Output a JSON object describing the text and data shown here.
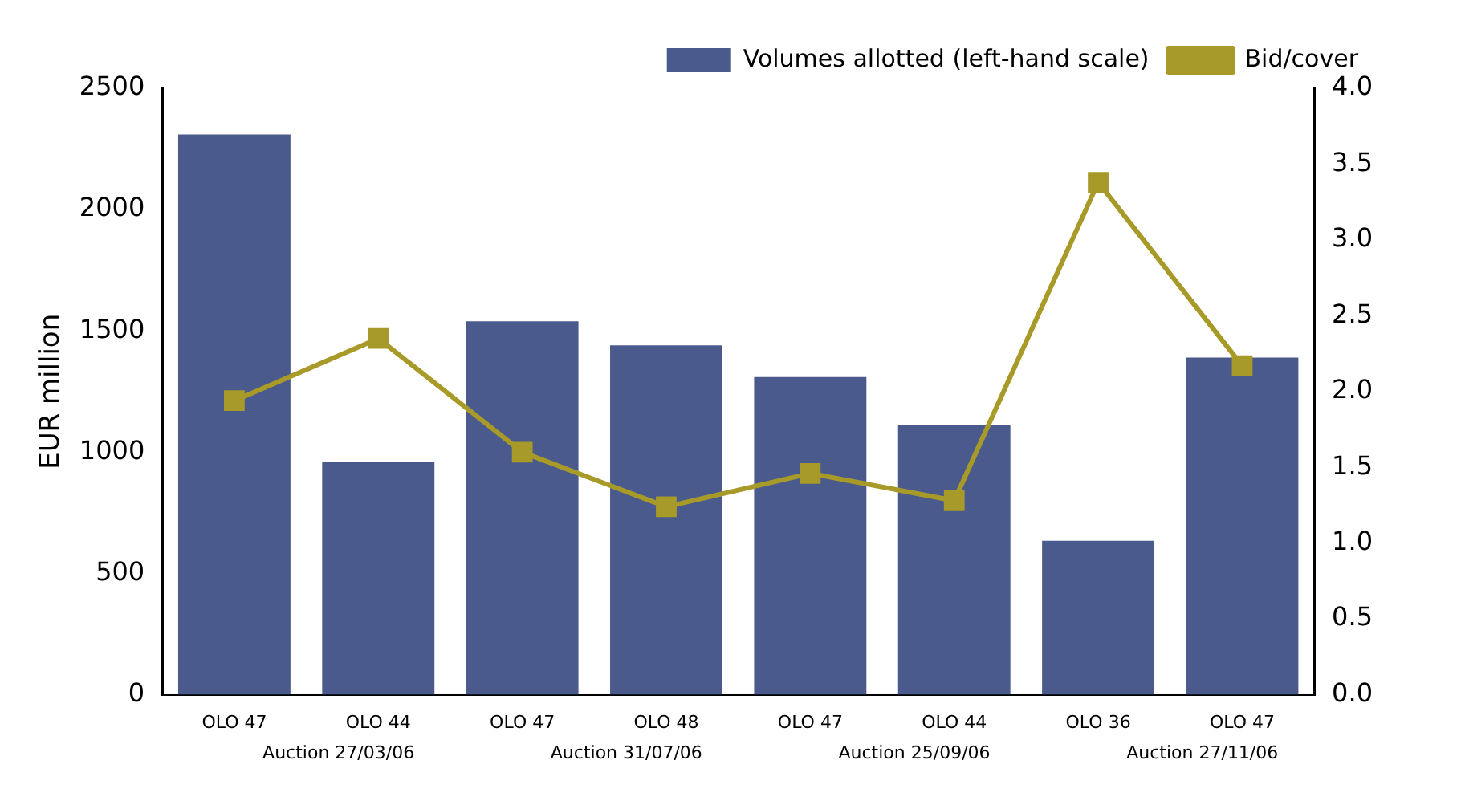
{
  "chart_data": {
    "type": "bar",
    "ylabel": "EUR million",
    "categories": [
      "OLO 47",
      "OLO 44",
      "OLO 47",
      "OLO 48",
      "OLO 47",
      "OLO 44",
      "OLO 36",
      "OLO 47"
    ],
    "series": [
      {
        "name": "Volumes allotted (left-hand scale)",
        "color": "#4a5a8c",
        "values": [
          2310,
          960,
          1540,
          1440,
          1310,
          1110,
          635,
          1390
        ]
      },
      {
        "name": "Bid/cover",
        "type": "line",
        "axis": "y2",
        "color": "#a89a28",
        "marker": "square",
        "values": [
          1.94,
          2.35,
          1.6,
          1.24,
          1.46,
          1.28,
          3.38,
          2.17
        ]
      }
    ],
    "ylim": [
      0,
      2500
    ],
    "yticks": [
      0,
      500,
      1000,
      1500,
      2000,
      2500
    ],
    "y2lim": [
      0,
      4
    ],
    "y2ticks": [
      {
        "value": 0,
        "label": "0.0"
      },
      {
        "value": 0.5,
        "label": "0.5"
      },
      {
        "value": 1,
        "label": "1.0"
      },
      {
        "value": 1.5,
        "label": "1.5"
      },
      {
        "value": 2,
        "label": "2.0"
      },
      {
        "value": 2.5,
        "label": "2.5"
      },
      {
        "value": 3,
        "label": "3.0"
      },
      {
        "value": 3.5,
        "label": "3.5"
      },
      {
        "value": 4,
        "label": "4.0"
      }
    ],
    "annotations": [
      "Auction 27/03/06",
      "Auction 31/07/06",
      "Auction 25/09/06",
      "Auction 27/11/06"
    ],
    "legend": "top right",
    "grid": false
  }
}
